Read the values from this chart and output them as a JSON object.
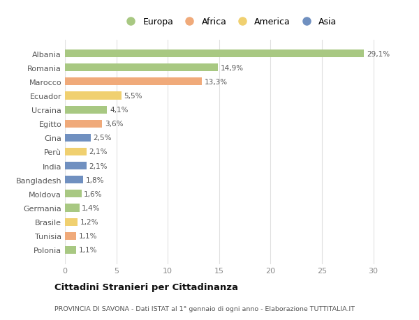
{
  "categories": [
    "Albania",
    "Romania",
    "Marocco",
    "Ecuador",
    "Ucraina",
    "Egitto",
    "Cina",
    "Perù",
    "India",
    "Bangladesh",
    "Moldova",
    "Germania",
    "Brasile",
    "Tunisia",
    "Polonia"
  ],
  "values": [
    29.1,
    14.9,
    13.3,
    5.5,
    4.1,
    3.6,
    2.5,
    2.1,
    2.1,
    1.8,
    1.6,
    1.4,
    1.2,
    1.1,
    1.1
  ],
  "labels": [
    "29,1%",
    "14,9%",
    "13,3%",
    "5,5%",
    "4,1%",
    "3,6%",
    "2,5%",
    "2,1%",
    "2,1%",
    "1,8%",
    "1,6%",
    "1,4%",
    "1,2%",
    "1,1%",
    "1,1%"
  ],
  "continent": [
    "Europa",
    "Europa",
    "Africa",
    "America",
    "Europa",
    "Africa",
    "Asia",
    "America",
    "Asia",
    "Asia",
    "Europa",
    "Europa",
    "America",
    "Africa",
    "Europa"
  ],
  "colors": {
    "Europa": "#a8c882",
    "Africa": "#f0aa7a",
    "America": "#f0d070",
    "Asia": "#7090c0"
  },
  "legend_order": [
    "Europa",
    "Africa",
    "America",
    "Asia"
  ],
  "title": "Cittadini Stranieri per Cittadinanza",
  "subtitle": "PROVINCIA DI SAVONA - Dati ISTAT al 1° gennaio di ogni anno - Elaborazione TUTTITALIA.IT",
  "xlim": [
    0,
    32
  ],
  "xticks": [
    0,
    5,
    10,
    15,
    20,
    25,
    30
  ],
  "background_color": "#ffffff",
  "grid_color": "#e0e0e0",
  "bar_height": 0.55
}
